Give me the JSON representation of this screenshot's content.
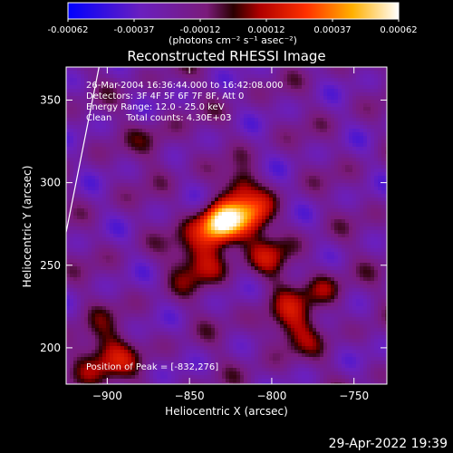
{
  "footer_date": "29-Apr-2022 19:39",
  "colorbar": {
    "ticks": [
      "-0.00062",
      "-0.00037",
      "-0.00012",
      "0.00012",
      "0.00037",
      "0.00062"
    ],
    "unit_label": "(photons cm⁻² s⁻¹ asec⁻²)"
  },
  "chart_data": {
    "type": "heatmap",
    "title": "Reconstructed RHESSI Image",
    "xlabel": "Heliocentric X (arcsec)",
    "ylabel": "Heliocentric Y (arcsec)",
    "xlim": [
      -925,
      -730
    ],
    "ylim": [
      178,
      370
    ],
    "x_ticks": [
      -900,
      -850,
      -800,
      -750
    ],
    "y_ticks": [
      200,
      250,
      300,
      350
    ],
    "x_tick_labels": [
      "−900",
      "−850",
      "−800",
      "−750"
    ],
    "y_tick_labels": [
      "200",
      "250",
      "300",
      "350"
    ],
    "color_range": [
      -0.00062,
      0.00062
    ],
    "annotations": [
      "26-Mar-2004 16:36:44.000 to 16:42:08.000",
      "Detectors: 3F 4F 5F 6F 7F 8F, Att 0",
      "Energy Range: 12.0 - 25.0 keV",
      "Clean     Total counts: 4.30E+03"
    ],
    "peak_label": "Position of Peak = [-832,276]",
    "peak": {
      "x": -832,
      "y": 276
    },
    "limb_line": [
      [
        -925,
        270
      ],
      [
        -905,
        370
      ]
    ]
  }
}
